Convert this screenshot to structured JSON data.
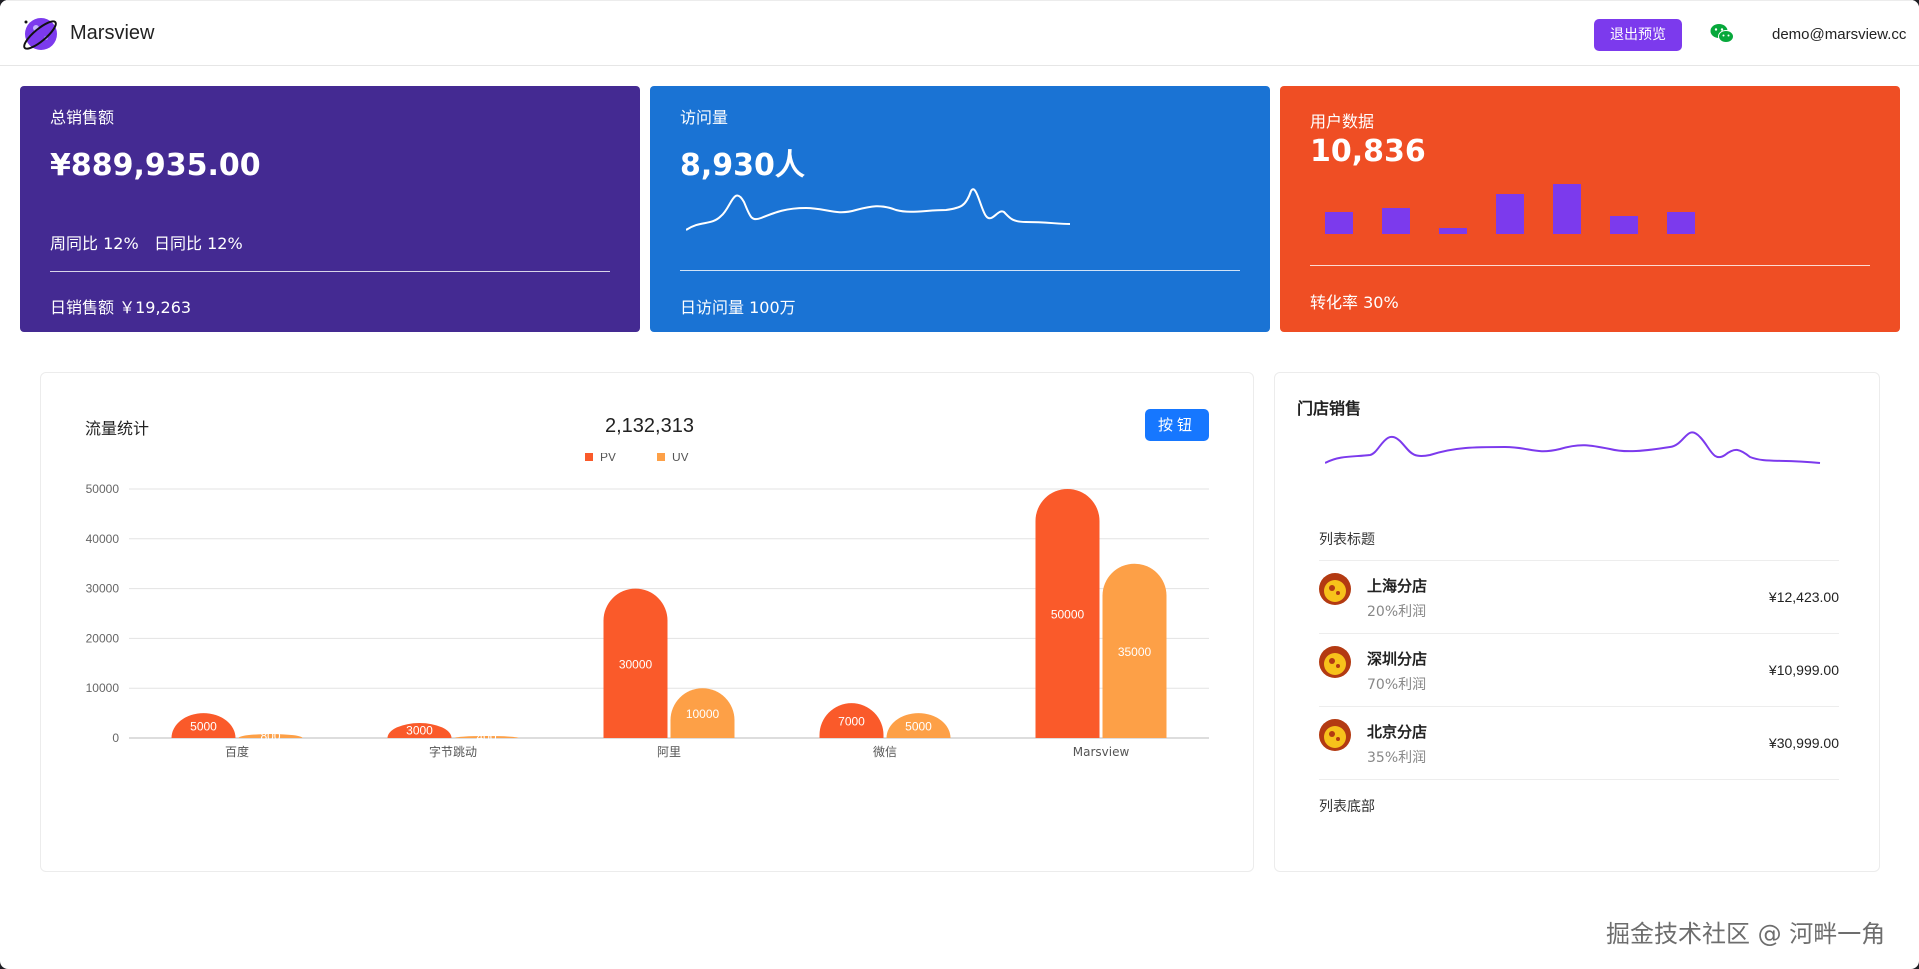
{
  "header": {
    "brand": "Marsview",
    "exit_label": "退出预览",
    "user_email": "demo@marsview.cc"
  },
  "cards": {
    "sales": {
      "label": "总销售额",
      "value": "¥889,935.00",
      "week_compare": "周同比 12%",
      "day_compare": "日同比 12%",
      "footer": "日销售额 ￥19,263"
    },
    "visits": {
      "label": "访问量",
      "value": "8,930人",
      "footer": "日访问量 100万"
    },
    "users": {
      "label": "用户数据",
      "value": "10,836",
      "footer": "转化率 30%"
    }
  },
  "traffic": {
    "title": "流量统计",
    "total": "2,132,313",
    "button_label": "按钮"
  },
  "chart_data": {
    "type": "bar",
    "title": "流量统计",
    "categories": [
      "百度",
      "字节跳动",
      "阿里",
      "微信",
      "Marsview"
    ],
    "series": [
      {
        "name": "PV",
        "values": [
          5000,
          3000,
          30000,
          7000,
          50000
        ],
        "color": "#fa5a2a"
      },
      {
        "name": "UV",
        "values": [
          800,
          400,
          10000,
          5000,
          35000
        ],
        "color": "#fda047"
      }
    ],
    "y_ticks": [
      0,
      10000,
      20000,
      30000,
      40000,
      50000
    ],
    "ylim": [
      0,
      50000
    ],
    "legend": "top-center",
    "grid": true
  },
  "store": {
    "title": "门店销售",
    "list_header": "列表标题",
    "list_footer": "列表底部",
    "items": [
      {
        "name": "上海分店",
        "desc": "20%利润",
        "price": "¥12,423.00"
      },
      {
        "name": "深圳分店",
        "desc": "70%利润",
        "price": "¥10,999.00"
      },
      {
        "name": "北京分店",
        "desc": "35%利润",
        "price": "¥30,999.00"
      }
    ]
  },
  "watermark": "掘金技术社区 @ 河畔一角",
  "colors": {
    "brand": "#7c3aed",
    "card_sales": "#442a92",
    "card_visits": "#1a73d4",
    "card_users": "#ef4e24",
    "mini_bar": "#7c3aed",
    "primary_button": "#1677ff"
  },
  "icons": [
    "planet-logo-icon",
    "wechat-icon",
    "store-avatar-icon"
  ]
}
